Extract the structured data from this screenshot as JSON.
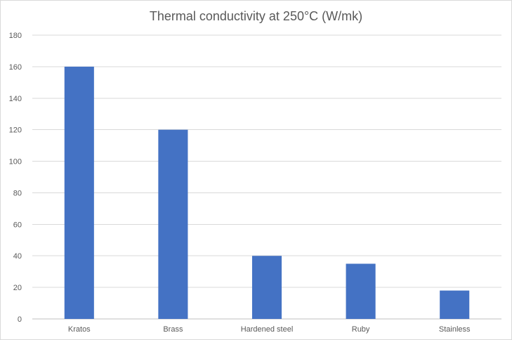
{
  "chart_data": {
    "type": "bar",
    "title": "Thermal conductivity at 250°C (W/mk)",
    "xlabel": "",
    "ylabel": "",
    "categories": [
      "Kratos",
      "Brass",
      "Hardened steel",
      "Ruby",
      "Stainless"
    ],
    "values": [
      160,
      120,
      40,
      35,
      18
    ],
    "ylim": [
      0,
      180
    ],
    "yticks": [
      0,
      20,
      40,
      60,
      80,
      100,
      120,
      140,
      160,
      180
    ],
    "grid": true,
    "bar_color": "#4472C4",
    "grid_color": "#d9d9d9",
    "legend": "none"
  }
}
